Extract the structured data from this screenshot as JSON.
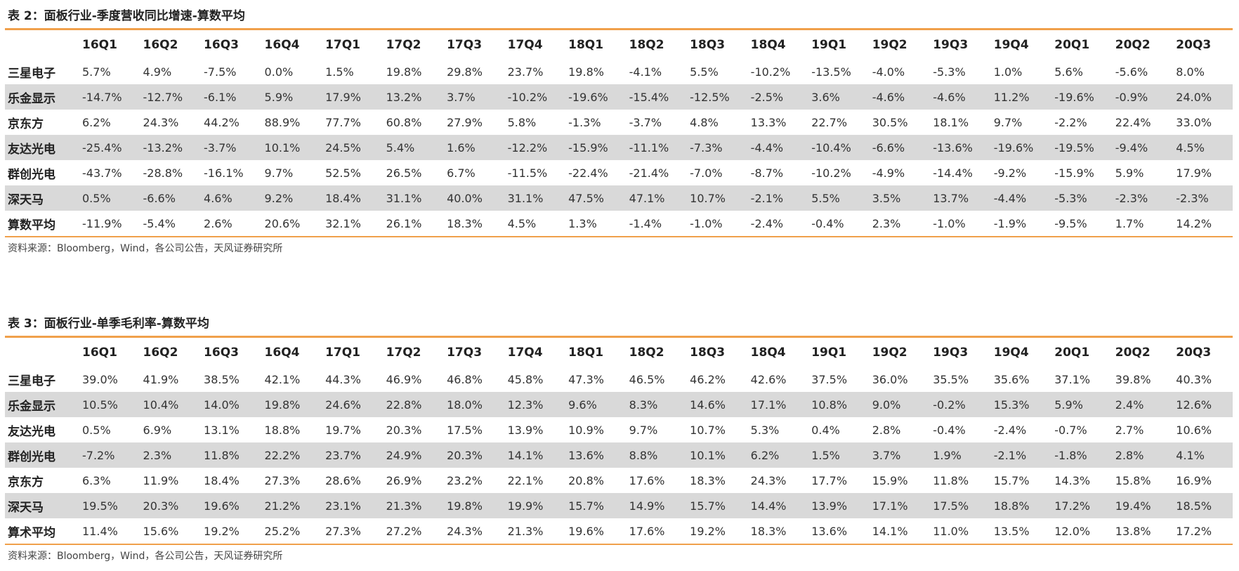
{
  "table1": {
    "title": "表 2：面板行业-季度营收同比增速-算数平均",
    "columns": [
      "16Q1",
      "16Q2",
      "16Q3",
      "16Q4",
      "17Q1",
      "17Q2",
      "17Q3",
      "17Q4",
      "18Q1",
      "18Q2",
      "18Q3",
      "18Q4",
      "19Q1",
      "19Q2",
      "19Q3",
      "19Q4",
      "20Q1",
      "20Q2",
      "20Q3"
    ],
    "rows": [
      {
        "name": "三星电子",
        "shaded": false,
        "values": [
          "5.7%",
          "4.9%",
          "-7.5%",
          "0.0%",
          "1.5%",
          "19.8%",
          "29.8%",
          "23.7%",
          "19.8%",
          "-4.1%",
          "5.5%",
          "-10.2%",
          "-13.5%",
          "-4.0%",
          "-5.3%",
          "1.0%",
          "5.6%",
          "-5.6%",
          "8.0%"
        ]
      },
      {
        "name": "乐金显示",
        "shaded": true,
        "values": [
          "-14.7%",
          "-12.7%",
          "-6.1%",
          "5.9%",
          "17.9%",
          "13.2%",
          "3.7%",
          "-10.2%",
          "-19.6%",
          "-15.4%",
          "-12.5%",
          "-2.5%",
          "3.6%",
          "-4.6%",
          "-4.6%",
          "11.2%",
          "-19.6%",
          "-0.9%",
          "24.0%"
        ]
      },
      {
        "name": "京东方",
        "shaded": false,
        "values": [
          "6.2%",
          "24.3%",
          "44.2%",
          "88.9%",
          "77.7%",
          "60.8%",
          "27.9%",
          "5.8%",
          "-1.3%",
          "-3.7%",
          "4.8%",
          "13.3%",
          "22.7%",
          "30.5%",
          "18.1%",
          "9.7%",
          "-2.2%",
          "22.4%",
          "33.0%"
        ]
      },
      {
        "name": "友达光电",
        "shaded": true,
        "values": [
          "-25.4%",
          "-13.2%",
          "-3.7%",
          "10.1%",
          "24.5%",
          "5.4%",
          "1.6%",
          "-12.2%",
          "-15.9%",
          "-11.1%",
          "-7.3%",
          "-4.4%",
          "-10.4%",
          "-6.6%",
          "-13.6%",
          "-19.6%",
          "-19.5%",
          "-9.4%",
          "4.5%"
        ]
      },
      {
        "name": "群创光电",
        "shaded": false,
        "values": [
          "-43.7%",
          "-28.8%",
          "-16.1%",
          "9.7%",
          "52.5%",
          "26.5%",
          "6.7%",
          "-11.5%",
          "-22.4%",
          "-21.4%",
          "-7.0%",
          "-8.7%",
          "-10.2%",
          "-4.9%",
          "-14.4%",
          "-9.2%",
          "-15.9%",
          "5.9%",
          "17.9%"
        ]
      },
      {
        "name": "深天马",
        "shaded": true,
        "values": [
          "0.5%",
          "-6.6%",
          "4.6%",
          "9.2%",
          "18.4%",
          "31.1%",
          "40.0%",
          "31.1%",
          "47.5%",
          "47.1%",
          "10.7%",
          "-2.1%",
          "5.5%",
          "3.5%",
          "13.7%",
          "-4.4%",
          "-5.3%",
          "-2.3%",
          "-2.3%"
        ]
      },
      {
        "name": "算数平均",
        "shaded": false,
        "values": [
          "-11.9%",
          "-5.4%",
          "2.6%",
          "20.6%",
          "32.1%",
          "26.1%",
          "18.3%",
          "4.5%",
          "1.3%",
          "-1.4%",
          "-1.0%",
          "-2.4%",
          "-0.4%",
          "2.3%",
          "-1.0%",
          "-1.9%",
          "-9.5%",
          "1.7%",
          "14.2%"
        ]
      }
    ],
    "source": "资料来源：Bloomberg，Wind，各公司公告，天风证券研究所"
  },
  "table2": {
    "title": "表 3：面板行业-单季毛利率-算数平均",
    "columns": [
      "16Q1",
      "16Q2",
      "16Q3",
      "16Q4",
      "17Q1",
      "17Q2",
      "17Q3",
      "17Q4",
      "18Q1",
      "18Q2",
      "18Q3",
      "18Q4",
      "19Q1",
      "19Q2",
      "19Q3",
      "19Q4",
      "20Q1",
      "20Q2",
      "20Q3"
    ],
    "rows": [
      {
        "name": "三星电子",
        "shaded": false,
        "values": [
          "39.0%",
          "41.9%",
          "38.5%",
          "42.1%",
          "44.3%",
          "46.9%",
          "46.8%",
          "45.8%",
          "47.3%",
          "46.5%",
          "46.2%",
          "42.6%",
          "37.5%",
          "36.0%",
          "35.5%",
          "35.6%",
          "37.1%",
          "39.8%",
          "40.3%"
        ]
      },
      {
        "name": "乐金显示",
        "shaded": true,
        "values": [
          "10.5%",
          "10.4%",
          "14.0%",
          "19.8%",
          "24.6%",
          "22.8%",
          "18.0%",
          "12.3%",
          "9.6%",
          "8.3%",
          "14.6%",
          "17.1%",
          "10.8%",
          "9.0%",
          "-0.2%",
          "15.3%",
          "5.9%",
          "2.4%",
          "12.6%"
        ]
      },
      {
        "name": "友达光电",
        "shaded": false,
        "values": [
          "0.5%",
          "6.9%",
          "13.1%",
          "18.8%",
          "19.7%",
          "20.3%",
          "17.5%",
          "13.9%",
          "10.9%",
          "9.7%",
          "10.7%",
          "5.3%",
          "0.4%",
          "2.8%",
          "-0.4%",
          "-2.4%",
          "-0.7%",
          "2.7%",
          "10.6%"
        ]
      },
      {
        "name": "群创光电",
        "shaded": true,
        "values": [
          "-7.2%",
          "2.3%",
          "11.8%",
          "22.2%",
          "23.7%",
          "24.9%",
          "20.3%",
          "14.1%",
          "13.6%",
          "8.8%",
          "10.1%",
          "6.2%",
          "1.5%",
          "3.7%",
          "1.9%",
          "-2.1%",
          "-1.8%",
          "2.8%",
          "4.1%"
        ]
      },
      {
        "name": "京东方",
        "shaded": false,
        "values": [
          "6.3%",
          "11.9%",
          "18.4%",
          "27.3%",
          "28.6%",
          "26.9%",
          "23.2%",
          "22.1%",
          "20.8%",
          "17.6%",
          "18.3%",
          "24.3%",
          "17.7%",
          "15.9%",
          "11.8%",
          "15.7%",
          "14.3%",
          "15.8%",
          "16.9%"
        ]
      },
      {
        "name": "深天马",
        "shaded": true,
        "values": [
          "19.5%",
          "20.3%",
          "19.6%",
          "21.2%",
          "23.1%",
          "21.3%",
          "19.8%",
          "19.9%",
          "15.7%",
          "14.9%",
          "15.7%",
          "14.4%",
          "13.9%",
          "17.1%",
          "17.5%",
          "18.8%",
          "17.2%",
          "19.4%",
          "18.5%"
        ]
      },
      {
        "name": "算术平均",
        "shaded": false,
        "values": [
          "11.4%",
          "15.6%",
          "19.2%",
          "25.2%",
          "27.3%",
          "27.2%",
          "24.3%",
          "21.3%",
          "19.6%",
          "17.6%",
          "19.2%",
          "18.3%",
          "13.6%",
          "14.1%",
          "11.0%",
          "13.5%",
          "12.0%",
          "13.8%",
          "17.2%"
        ]
      }
    ],
    "source": "资料来源：Bloomberg，Wind，各公司公告，天风证券研究所"
  }
}
